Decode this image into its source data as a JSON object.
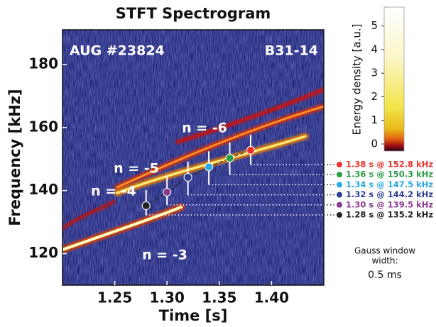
{
  "chart_data": {
    "type": "spectrogram",
    "title": "STFT Spectrogram",
    "x_label": "Time [s]",
    "y_label": "Frequency [kHz]",
    "xlim": [
      1.2,
      1.45
    ],
    "xticks": [
      1.25,
      {
        "value": 1.3,
        "label": "1.30"
      },
      1.35,
      {
        "value": 1.4,
        "label": "1.40"
      }
    ],
    "ylim": [
      110,
      191
    ],
    "yticks": [
      120,
      140,
      160,
      180
    ],
    "annotations": [
      "AUG #23824",
      "B31-14",
      "n = -3",
      "n = -4",
      "n = -5",
      "n = -6"
    ],
    "points": [
      {
        "x": 1.28,
        "y": 135.2,
        "color": "#222222",
        "label": "1.28 s @ 135.2 kHz"
      },
      {
        "x": 1.3,
        "y": 139.5,
        "color": "#8b3b8f",
        "label": "1.30 s @ 139.5 kHz"
      },
      {
        "x": 1.32,
        "y": 144.2,
        "color": "#2b3d8f",
        "label": "1.32 s @ 144.2 kHz"
      },
      {
        "x": 1.34,
        "y": 147.5,
        "color": "#27a9e1",
        "label": "1.34 s @ 147.5 kHz"
      },
      {
        "x": 1.36,
        "y": 150.3,
        "color": "#2a9d45",
        "label": "1.36 s @ 150.3 kHz"
      },
      {
        "x": 1.38,
        "y": 152.8,
        "color": "#e8322b",
        "label": "1.38 s @ 152.8 kHz"
      }
    ],
    "colorbar": {
      "label": "Energy density [a.u.]",
      "lim": [
        -0.3,
        5.8
      ],
      "ticks": [
        0,
        1,
        2,
        3,
        4,
        5
      ]
    },
    "note": {
      "lines": [
        "Gauss window",
        "width:",
        "0.5 ms"
      ]
    }
  }
}
